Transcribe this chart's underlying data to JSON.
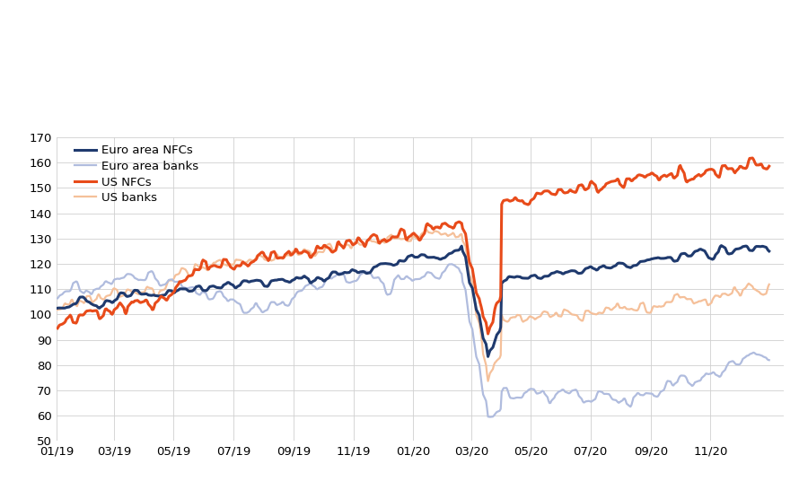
{
  "legend_labels": [
    "Euro area NFCs",
    "Euro area banks",
    "US NFCs",
    "US banks"
  ],
  "colors": {
    "euro_nfc": "#1f3a6e",
    "euro_banks": "#b0bcde",
    "us_nfc": "#e84b1a",
    "us_banks": "#f5c09a"
  },
  "ylim": [
    50,
    170
  ],
  "yticks": [
    50,
    60,
    70,
    80,
    90,
    100,
    110,
    120,
    130,
    140,
    150,
    160,
    170
  ],
  "xtick_labels": [
    "01/19",
    "03/19",
    "05/19",
    "07/19",
    "09/19",
    "11/19",
    "01/20",
    "03/20",
    "05/20",
    "07/20",
    "09/20",
    "11/20"
  ],
  "grid_color": "#d0d0d0",
  "lw_nfc": 2.2,
  "lw_banks": 1.6
}
